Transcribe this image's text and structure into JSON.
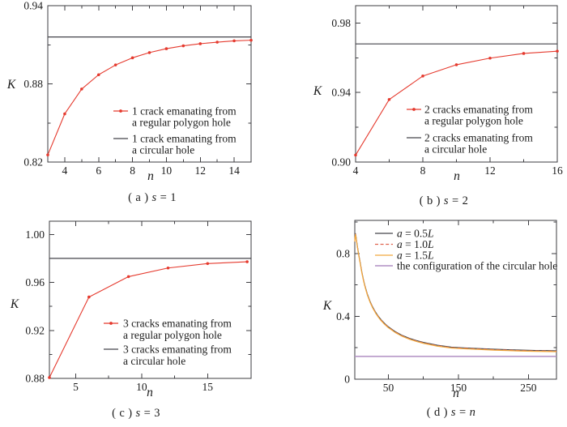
{
  "figure": {
    "background": "#ffffff",
    "frame_color": "#3e3e42",
    "text_color": "#1b1b1b",
    "accent_red": "#e53a2e",
    "accent_orange": "#f2a93d",
    "accent_purple": "#b18fc3",
    "accent_salmon": "#e0654f"
  },
  "chart_data": [
    {
      "id": "a",
      "type": "line",
      "xlabel": "n",
      "ylabel": "K",
      "xlim": [
        3,
        15
      ],
      "ylim": [
        0.82,
        0.94
      ],
      "grid": false,
      "xticks": {
        "values": [
          4,
          6,
          8,
          10,
          12,
          14
        ],
        "labels": [
          "4",
          "6",
          "8",
          "10",
          "12",
          "14"
        ],
        "minor": [
          5,
          7,
          9,
          11,
          13
        ]
      },
      "yticks": {
        "values": [
          0.82,
          0.88,
          0.94
        ],
        "labels": [
          "0.82",
          "0.88",
          "0.94"
        ],
        "minor": [
          0.85,
          0.91
        ]
      },
      "series": [
        {
          "name": "1 crack emanating from a regular polygon hole",
          "color": "#e53a2e",
          "width": 1.1,
          "marker": true,
          "dash": null,
          "x": [
            3,
            4,
            5,
            6,
            7,
            8,
            9,
            10,
            11,
            12,
            13,
            14,
            15
          ],
          "y": [
            0.8255,
            0.857,
            0.876,
            0.887,
            0.8945,
            0.9,
            0.904,
            0.907,
            0.9092,
            0.9108,
            0.912,
            0.913,
            0.9135
          ]
        },
        {
          "name": "1 crack emanating from a circular hole",
          "color": "#44444a",
          "width": 1.2,
          "marker": false,
          "dash": null,
          "x": [
            3,
            15
          ],
          "y": [
            0.916,
            0.916
          ]
        }
      ],
      "legend": [
        {
          "series": 0,
          "lines": [
            [
              {
                "t": "1 crack emanating from",
                "i": false
              }
            ],
            [
              {
                "t": "a regular polygon hole",
                "i": false
              }
            ]
          ]
        },
        {
          "series": 1,
          "lines": [
            [
              {
                "t": "1 crack emanating from",
                "i": false
              }
            ],
            [
              {
                "t": "a circular hole",
                "i": false
              }
            ]
          ]
        }
      ],
      "caption": [
        {
          "t": "( a ) ",
          "i": false
        },
        {
          "t": "s",
          "i": true
        },
        {
          "t": " = 1",
          "i": false
        }
      ]
    },
    {
      "id": "b",
      "type": "line",
      "xlabel": "n",
      "ylabel": "K",
      "xlim": [
        4,
        16
      ],
      "ylim": [
        0.9,
        0.99
      ],
      "grid": false,
      "xticks": {
        "values": [
          4,
          8,
          12,
          16
        ],
        "labels": [
          "4",
          "8",
          "12",
          "16"
        ],
        "minor": [
          6,
          10,
          14
        ]
      },
      "yticks": {
        "values": [
          0.9,
          0.94,
          0.98
        ],
        "labels": [
          "0.90",
          "0.94",
          "0.98"
        ],
        "minor": [
          0.92,
          0.96
        ]
      },
      "series": [
        {
          "name": "2 cracks emanating from a regular polygon hole",
          "color": "#e53a2e",
          "width": 1.1,
          "marker": true,
          "dash": null,
          "x": [
            4,
            6,
            8,
            10,
            12,
            14,
            16
          ],
          "y": [
            0.904,
            0.936,
            0.9495,
            0.956,
            0.9598,
            0.9625,
            0.9638
          ]
        },
        {
          "name": "2 cracks emanating from a circular hole",
          "color": "#44444a",
          "width": 1.2,
          "marker": false,
          "dash": null,
          "x": [
            4,
            16
          ],
          "y": [
            0.968,
            0.968
          ]
        }
      ],
      "legend": [
        {
          "series": 0,
          "lines": [
            [
              {
                "t": "2 cracks emanating from",
                "i": false
              }
            ],
            [
              {
                "t": "a regular polygon hole",
                "i": false
              }
            ]
          ]
        },
        {
          "series": 1,
          "lines": [
            [
              {
                "t": "2 cracks emanating from",
                "i": false
              }
            ],
            [
              {
                "t": "a circular hole",
                "i": false
              }
            ]
          ]
        }
      ],
      "caption": [
        {
          "t": "( b ) ",
          "i": false
        },
        {
          "t": "s",
          "i": true
        },
        {
          "t": " = 2",
          "i": false
        }
      ]
    },
    {
      "id": "c",
      "type": "line",
      "xlabel": "n",
      "ylabel": "K",
      "xlim": [
        3,
        18.3
      ],
      "ylim": [
        0.88,
        1.011
      ],
      "grid": false,
      "xticks": {
        "values": [
          5,
          10,
          15
        ],
        "labels": [
          "5",
          "10",
          "15"
        ],
        "minor": [
          7.5,
          12.5
        ]
      },
      "yticks": {
        "values": [
          0.88,
          0.92,
          0.96,
          1.0
        ],
        "labels": [
          "0.88",
          "0.92",
          "0.96",
          "1.00"
        ],
        "minor": [
          0.9,
          0.94,
          0.98
        ]
      },
      "series": [
        {
          "name": "3 cracks emanating from a regular polygon hole",
          "color": "#e53a2e",
          "width": 1.1,
          "marker": true,
          "dash": null,
          "x": [
            3,
            6,
            9,
            12,
            15,
            18
          ],
          "y": [
            0.8807,
            0.9478,
            0.9648,
            0.972,
            0.9757,
            0.9772
          ]
        },
        {
          "name": "3 cracks emanating from a circular hole",
          "color": "#44444a",
          "width": 1.2,
          "marker": false,
          "dash": null,
          "x": [
            3,
            18.3
          ],
          "y": [
            0.98,
            0.98
          ]
        }
      ],
      "legend": [
        {
          "series": 0,
          "lines": [
            [
              {
                "t": "3 cracks emanating from",
                "i": false
              }
            ],
            [
              {
                "t": "a regular polygon hole",
                "i": false
              }
            ]
          ]
        },
        {
          "series": 1,
          "lines": [
            [
              {
                "t": "3 cracks emanating from",
                "i": false
              }
            ],
            [
              {
                "t": "a circular hole",
                "i": false
              }
            ]
          ]
        }
      ],
      "caption": [
        {
          "t": "( c ) ",
          "i": false
        },
        {
          "t": "s",
          "i": true
        },
        {
          "t": " = 3",
          "i": false
        }
      ]
    },
    {
      "id": "d",
      "type": "line",
      "xlabel": "n",
      "ylabel": "K",
      "xlim": [
        2,
        290
      ],
      "ylim": [
        0,
        1.01
      ],
      "grid": false,
      "xticks": {
        "values": [
          50,
          150,
          250
        ],
        "labels": [
          "50",
          "150",
          "250"
        ],
        "minor": [
          100,
          200
        ]
      },
      "yticks": {
        "values": [
          0,
          0.4,
          0.8
        ],
        "labels": [
          "0",
          "0.4",
          "0.8"
        ],
        "minor": [
          0.2,
          0.6,
          1.0
        ]
      },
      "series": [
        {
          "name": "a = 0.5L",
          "color": "#44444a",
          "width": 1.1,
          "marker": false,
          "dash": null,
          "x": [
            2,
            2.5,
            3,
            4,
            5,
            6,
            7,
            8,
            9,
            10,
            12,
            14,
            16,
            18,
            20,
            24,
            28,
            32,
            36,
            40,
            45,
            50,
            60,
            70,
            80,
            90,
            100,
            120,
            140,
            160,
            180,
            200,
            220,
            240,
            260,
            280,
            290
          ],
          "y": [
            0.881,
            0.911,
            0.926,
            0.901,
            0.868,
            0.838,
            0.811,
            0.784,
            0.761,
            0.736,
            0.684,
            0.641,
            0.603,
            0.571,
            0.541,
            0.493,
            0.455,
            0.424,
            0.398,
            0.376,
            0.353,
            0.333,
            0.302,
            0.278,
            0.26,
            0.246,
            0.234,
            0.216,
            0.204,
            0.199,
            0.195,
            0.191,
            0.188,
            0.185,
            0.183,
            0.182,
            0.181
          ]
        },
        {
          "name": "a = 1.0L",
          "color": "#e0654f",
          "width": 1.1,
          "marker": false,
          "dash": "5,3",
          "x": [
            2,
            2.5,
            3,
            4,
            5,
            6,
            7,
            8,
            9,
            10,
            12,
            14,
            16,
            18,
            20,
            24,
            28,
            32,
            36,
            40,
            45,
            50,
            60,
            70,
            80,
            90,
            100,
            120,
            140,
            160,
            180,
            200,
            220,
            240,
            260,
            280,
            290
          ],
          "y": [
            0.878,
            0.908,
            0.923,
            0.898,
            0.865,
            0.835,
            0.808,
            0.781,
            0.758,
            0.733,
            0.681,
            0.638,
            0.6,
            0.568,
            0.538,
            0.49,
            0.452,
            0.421,
            0.395,
            0.373,
            0.35,
            0.33,
            0.299,
            0.275,
            0.257,
            0.243,
            0.231,
            0.213,
            0.201,
            0.196,
            0.192,
            0.188,
            0.185,
            0.182,
            0.18,
            0.179,
            0.178
          ]
        },
        {
          "name": "a = 1.5L",
          "color": "#f2a93d",
          "width": 1.2,
          "marker": false,
          "dash": null,
          "x": [
            2,
            2.5,
            3,
            4,
            5,
            6,
            7,
            8,
            9,
            10,
            12,
            14,
            16,
            18,
            20,
            24,
            28,
            32,
            36,
            40,
            45,
            50,
            60,
            70,
            80,
            90,
            100,
            120,
            140,
            160,
            180,
            200,
            220,
            240,
            260,
            280,
            290
          ],
          "y": [
            0.875,
            0.905,
            0.92,
            0.895,
            0.862,
            0.832,
            0.805,
            0.778,
            0.755,
            0.73,
            0.678,
            0.635,
            0.597,
            0.565,
            0.535,
            0.487,
            0.449,
            0.418,
            0.392,
            0.37,
            0.347,
            0.327,
            0.296,
            0.272,
            0.254,
            0.24,
            0.228,
            0.21,
            0.198,
            0.193,
            0.189,
            0.185,
            0.182,
            0.179,
            0.177,
            0.176,
            0.175
          ]
        },
        {
          "name": "the configuration of the circular hole",
          "color": "#b18fc3",
          "width": 1.5,
          "marker": false,
          "dash": null,
          "x": [
            2,
            290
          ],
          "y": [
            0.145,
            0.145
          ]
        }
      ],
      "legend": [
        {
          "series": 0,
          "lines": [
            [
              {
                "t": "a",
                "i": true
              },
              {
                "t": " = 0.5",
                "i": false
              },
              {
                "t": "L",
                "i": true
              }
            ]
          ]
        },
        {
          "series": 1,
          "lines": [
            [
              {
                "t": "a",
                "i": true
              },
              {
                "t": " = 1.0",
                "i": false
              },
              {
                "t": "L",
                "i": true
              }
            ]
          ]
        },
        {
          "series": 2,
          "lines": [
            [
              {
                "t": "a",
                "i": true
              },
              {
                "t": " = 1.5",
                "i": false
              },
              {
                "t": "L",
                "i": true
              }
            ]
          ]
        },
        {
          "series": 3,
          "lines": [
            [
              {
                "t": "the configuration of the circular hole",
                "i": false
              }
            ]
          ]
        }
      ],
      "caption": [
        {
          "t": "( d ) ",
          "i": false
        },
        {
          "t": "s",
          "i": true
        },
        {
          "t": " = ",
          "i": false
        },
        {
          "t": "n",
          "i": true
        }
      ]
    }
  ]
}
